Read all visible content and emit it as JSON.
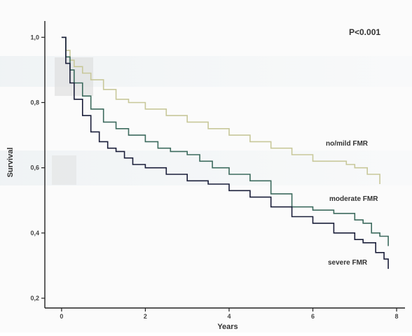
{
  "chart_data": {
    "type": "line",
    "title": "",
    "xlabel": "Years",
    "ylabel": "Survival",
    "xlim": [
      -0.4,
      8.2
    ],
    "ylim": [
      0.17,
      1.05
    ],
    "x_ticks": [
      0,
      2,
      4,
      6,
      8
    ],
    "x_tick_labels": [
      "0",
      "2",
      "4",
      "6",
      "8"
    ],
    "y_ticks": [
      0.2,
      0.4,
      0.6,
      0.8,
      1.0
    ],
    "y_tick_labels": [
      "0,2",
      "0,4",
      "0,6",
      "0,8",
      "1,0"
    ],
    "grid": false,
    "annotation": "P<0.001",
    "series": [
      {
        "name": "no/mild FMR",
        "color": "#c8c89a",
        "x": [
          0,
          0.1,
          0.2,
          0.3,
          0.5,
          0.7,
          1.0,
          1.3,
          1.6,
          2.0,
          2.5,
          3.0,
          3.5,
          4.0,
          4.5,
          5.0,
          5.5,
          6.0,
          6.5,
          6.8,
          7.0,
          7.3,
          7.6
        ],
        "y": [
          1.0,
          0.96,
          0.93,
          0.91,
          0.89,
          0.87,
          0.84,
          0.81,
          0.8,
          0.78,
          0.76,
          0.74,
          0.72,
          0.7,
          0.68,
          0.66,
          0.64,
          0.62,
          0.62,
          0.61,
          0.6,
          0.58,
          0.55
        ]
      },
      {
        "name": "moderate FMR",
        "color": "#3d6b5e",
        "x": [
          0,
          0.1,
          0.2,
          0.3,
          0.5,
          0.7,
          1.0,
          1.3,
          1.6,
          2.0,
          2.3,
          2.6,
          3.0,
          3.3,
          3.6,
          4.0,
          4.5,
          5.0,
          5.5,
          6.0,
          6.5,
          7.0,
          7.2,
          7.4,
          7.6,
          7.8
        ],
        "y": [
          1.0,
          0.94,
          0.9,
          0.86,
          0.82,
          0.78,
          0.74,
          0.72,
          0.7,
          0.68,
          0.66,
          0.65,
          0.64,
          0.62,
          0.6,
          0.58,
          0.56,
          0.52,
          0.48,
          0.47,
          0.46,
          0.44,
          0.43,
          0.4,
          0.39,
          0.36
        ]
      },
      {
        "name": "severe FMR",
        "color": "#1b1f3a",
        "x": [
          0,
          0.1,
          0.2,
          0.3,
          0.5,
          0.7,
          0.9,
          1.1,
          1.3,
          1.5,
          1.7,
          2.0,
          2.5,
          3.0,
          3.5,
          4.0,
          4.5,
          5.0,
          5.5,
          6.0,
          6.5,
          7.0,
          7.2,
          7.5,
          7.7,
          7.8
        ],
        "y": [
          1.0,
          0.92,
          0.86,
          0.81,
          0.76,
          0.71,
          0.68,
          0.66,
          0.65,
          0.63,
          0.61,
          0.6,
          0.58,
          0.56,
          0.55,
          0.53,
          0.51,
          0.48,
          0.45,
          0.43,
          0.4,
          0.38,
          0.37,
          0.34,
          0.32,
          0.29
        ]
      }
    ]
  }
}
